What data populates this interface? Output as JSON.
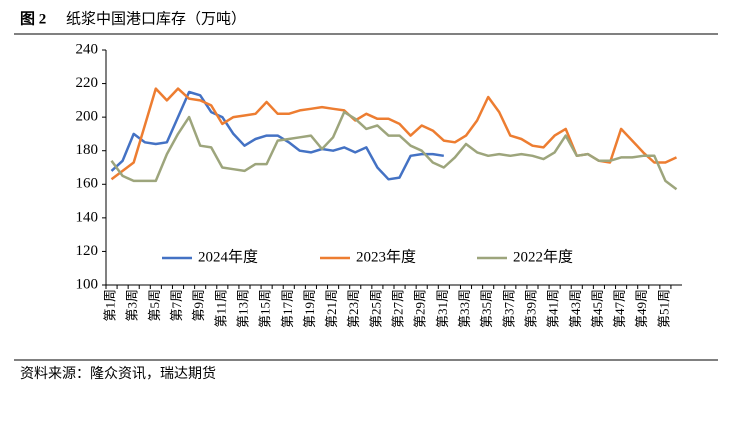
{
  "chart_data": {
    "type": "line",
    "figure_label": "图 2",
    "title": "纸浆中国港口库存（万吨）",
    "source": "资料来源：隆众资讯，瑞达期货",
    "categories": [
      "第1周",
      null,
      "第3周",
      null,
      "第5周",
      null,
      "第7周",
      null,
      "第9周",
      null,
      "第11周",
      null,
      "第13周",
      null,
      "第15周",
      null,
      "第17周",
      null,
      "第19周",
      null,
      "第21周",
      null,
      "第23周",
      null,
      "第25周",
      null,
      "第27周",
      null,
      "第29周",
      null,
      "第31周",
      null,
      "第33周",
      null,
      "第35周",
      null,
      "第37周",
      null,
      "第39周",
      null,
      "第41周",
      null,
      "第43周",
      null,
      "第45周",
      null,
      "第47周",
      null,
      "第49周",
      null,
      "第51周",
      null
    ],
    "series": [
      {
        "name": "2024年度",
        "color": "#4472c4",
        "values": [
          168,
          174,
          190,
          185,
          184,
          185,
          200,
          215,
          213,
          203,
          200,
          190,
          183,
          187,
          189,
          189,
          185,
          180,
          179,
          181,
          180,
          182,
          179,
          182,
          170,
          163,
          164,
          177,
          178,
          178,
          177,
          null,
          null,
          null,
          null,
          null,
          null,
          null,
          null,
          null,
          null,
          null,
          null,
          null,
          null,
          null,
          null,
          null,
          null,
          null,
          null,
          null
        ]
      },
      {
        "name": "2023年度",
        "color": "#ed7d31",
        "values": [
          163,
          168,
          173,
          195,
          217,
          210,
          217,
          211,
          210,
          207,
          196,
          200,
          201,
          202,
          209,
          202,
          202,
          204,
          205,
          206,
          205,
          204,
          198,
          202,
          199,
          199,
          196,
          189,
          195,
          192,
          186,
          185,
          189,
          198,
          212,
          203,
          189,
          187,
          183,
          182,
          189,
          193,
          177,
          178,
          174,
          173,
          193,
          186,
          179,
          173,
          173,
          176
        ]
      },
      {
        "name": "2022年度",
        "color": "#9da57c",
        "values": [
          174,
          165,
          162,
          162,
          162,
          178,
          190,
          200,
          183,
          182,
          170,
          169,
          168,
          172,
          172,
          186,
          187,
          188,
          189,
          181,
          188,
          203,
          199,
          193,
          195,
          189,
          189,
          183,
          180,
          173,
          170,
          176,
          184,
          179,
          177,
          178,
          177,
          178,
          177,
          175,
          179,
          189,
          177,
          178,
          174,
          174,
          176,
          176,
          177,
          177,
          162,
          157
        ]
      }
    ],
    "ylim": [
      100,
      240
    ],
    "yticks": [
      100,
      120,
      140,
      160,
      180,
      200,
      220,
      240
    ],
    "grid": false,
    "legend": "bottom"
  }
}
